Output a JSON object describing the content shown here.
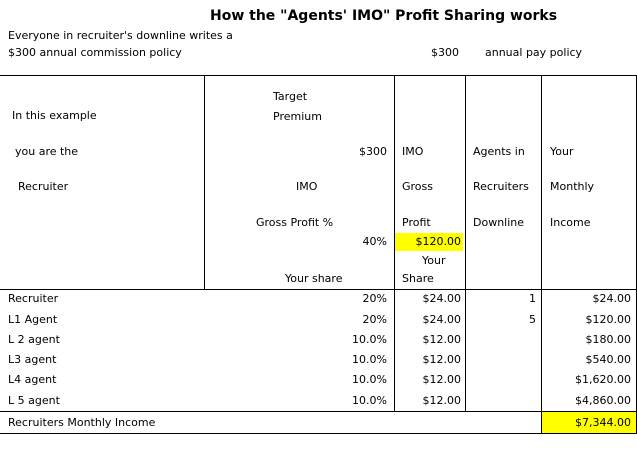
{
  "title": "How the \"Agents' IMO\" Profit Sharing works",
  "intro": {
    "line1": "Everyone in recruiter's downline writes a",
    "line2": "$300 annual commission policy",
    "pay_amount": "$300",
    "pay_label": "annual pay policy"
  },
  "header": {
    "example": "In this example",
    "you_are": "you are the",
    "recruiter": "Recruiter",
    "target": "Target",
    "premium": "Premium",
    "premium_value": "$300",
    "imo": "IMO",
    "gross_profit_pct": "Gross Profit %",
    "pct_value": "40%",
    "your_share": "Your share",
    "col_imo": "IMO",
    "col_gross": "Gross",
    "col_profit": "Profit",
    "gross_value": "$120.00",
    "col_your": "Your",
    "col_share": "Share",
    "agents_in": "Agents in",
    "recruiters": "Recruiters",
    "downline": "Downline",
    "income_your": "Your",
    "income_monthly": "Monthly",
    "income_income": "Income"
  },
  "rows": [
    {
      "label": "Recruiter",
      "pct": "20%",
      "share": "$24.00",
      "agents": "1",
      "income": "$24.00"
    },
    {
      "label": "L1 Agent",
      "pct": "20%",
      "share": "$24.00",
      "agents": "5",
      "income": "$120.00"
    },
    {
      "label": "L 2 agent",
      "pct": "10.0%",
      "share": "$12.00",
      "agents": "",
      "income": "$180.00"
    },
    {
      "label": "L3 agent",
      "pct": "10.0%",
      "share": "$12.00",
      "agents": "",
      "income": "$540.00"
    },
    {
      "label": "L4 agent",
      "pct": "10.0%",
      "share": "$12.00",
      "agents": "",
      "income": "$1,620.00"
    },
    {
      "label": "L 5 agent",
      "pct": "10.0%",
      "share": "$12.00",
      "agents": "",
      "income": "$4,860.00"
    }
  ],
  "total": {
    "label": "Recruiters Monthly Income",
    "value": "$7,344.00"
  },
  "highlight_color": "#ffff00"
}
